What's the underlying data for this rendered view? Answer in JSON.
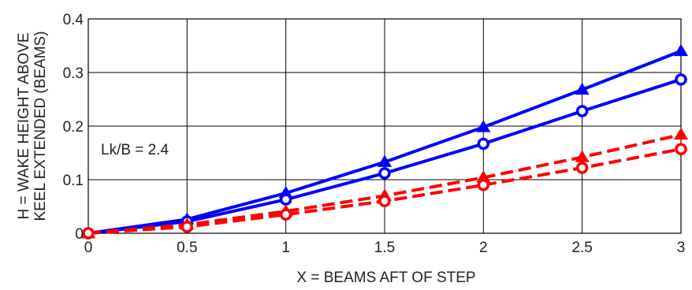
{
  "chart_data": {
    "type": "line",
    "xlabel": "X = BEAMS AFT OF STEP",
    "ylabel_lines": [
      "H = WAKE HEIGHT ABOVE",
      "KEEL EXTENDED (BEAMS)"
    ],
    "xlim": [
      0,
      3
    ],
    "ylim": [
      0,
      0.4
    ],
    "x_ticks": [
      "0",
      "0.5",
      "1",
      "1.5",
      "2",
      "2.5",
      "3"
    ],
    "y_ticks": [
      "0",
      "0.1",
      "0.2",
      "0.3",
      "0.4"
    ],
    "grid": true,
    "annotation": "Lk/B = 2.4",
    "colors": {
      "solid": "#0000ff",
      "dashed": "#ff0000",
      "grid": "#000000"
    },
    "x": [
      0,
      0.5,
      1,
      1.5,
      2,
      2.5,
      3
    ],
    "series": [
      {
        "marker": "triangle",
        "style": "solid",
        "color": "#0000ff",
        "values": [
          0,
          0.026,
          0.075,
          0.133,
          0.198,
          0.268,
          0.34
        ]
      },
      {
        "marker": "circle",
        "style": "solid",
        "color": "#0000ff",
        "values": [
          0,
          0.022,
          0.063,
          0.112,
          0.167,
          0.228,
          0.287
        ]
      },
      {
        "marker": "triangle",
        "style": "dashed",
        "color": "#ff0000",
        "values": [
          0,
          0.016,
          0.041,
          0.07,
          0.104,
          0.142,
          0.184
        ]
      },
      {
        "marker": "circle",
        "style": "dashed",
        "color": "#ff0000",
        "values": [
          0,
          0.012,
          0.035,
          0.06,
          0.09,
          0.122,
          0.157
        ]
      }
    ]
  }
}
